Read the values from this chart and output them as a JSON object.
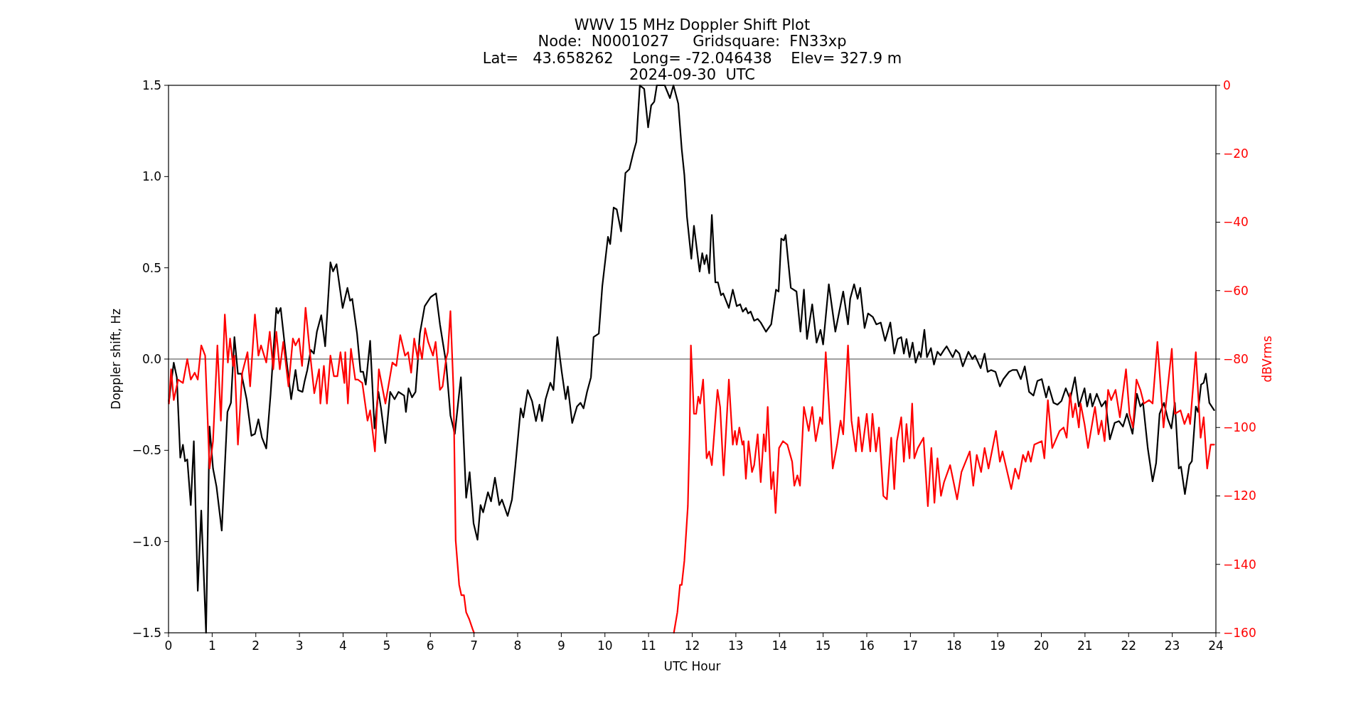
{
  "chart_data": {
    "type": "line",
    "title": "WWV 15 MHz Doppler Shift Plot",
    "subtitle": "Node:  N0001027     Gridsquare:  FN33xp\nLat=   43.658262    Long= -72.046438    Elev= 327.9 m\n2024-09-30  UTC",
    "xlabel": "UTC Hour",
    "ylabel": "Doppler shift, Hz",
    "y2label": "dBVrms",
    "xlim": [
      0,
      24
    ],
    "xticks": [
      0,
      1,
      2,
      3,
      4,
      5,
      6,
      7,
      8,
      9,
      10,
      11,
      12,
      13,
      14,
      15,
      16,
      17,
      18,
      19,
      20,
      21,
      22,
      23,
      24
    ],
    "ylim": [
      -1.5,
      1.5
    ],
    "yticks": [
      {
        "value": -1.5,
        "label": "−1.5"
      },
      {
        "value": -1,
        "label": "−1.0"
      },
      {
        "value": -0.5,
        "label": "−0.5"
      },
      {
        "value": 0,
        "label": "0.0"
      },
      {
        "value": 0.5,
        "label": "0.5"
      },
      {
        "value": 1,
        "label": "1.0"
      },
      {
        "value": 1.5,
        "label": "1.5"
      }
    ],
    "y2lim": [
      -160,
      0
    ],
    "y2ticks": [
      {
        "value": -160,
        "label": "−160"
      },
      {
        "value": -140,
        "label": "−140"
      },
      {
        "value": -120,
        "label": "−120"
      },
      {
        "value": -100,
        "label": "−100"
      },
      {
        "value": -80,
        "label": "−80"
      },
      {
        "value": -60,
        "label": "−60"
      },
      {
        "value": -40,
        "label": "−40"
      },
      {
        "value": -20,
        "label": "−20"
      },
      0
    ],
    "grid": false,
    "ref_lines": [
      {
        "axis": "y",
        "value": 0,
        "color": "#808080"
      }
    ],
    "series": [
      {
        "color": "#000000",
        "x": [
          0.01,
          0.12,
          0.19,
          0.27,
          0.33,
          0.38,
          0.43,
          0.51,
          0.58,
          0.67,
          0.75,
          0.86,
          0.94,
          1.02,
          1.1,
          1.22,
          1.35,
          1.43,
          1.51,
          1.59,
          1.67,
          1.79,
          1.9,
          1.98,
          2.06,
          2.14,
          2.24,
          2.34,
          2.47,
          2.51,
          2.57,
          2.69,
          2.81,
          2.91,
          2.97,
          3.07,
          3.12,
          3.18,
          3.26,
          3.33,
          3.4,
          3.5,
          3.59,
          3.71,
          3.77,
          3.85,
          3.99,
          4.1,
          4.16,
          4.21,
          4.32,
          4.4,
          4.46,
          4.52,
          4.62,
          4.72,
          4.81,
          4.87,
          4.97,
          5.08,
          5.18,
          5.27,
          5.4,
          5.44,
          5.5,
          5.58,
          5.66,
          5.76,
          5.87,
          6.01,
          6.07,
          6.13,
          6.22,
          6.36,
          6.46,
          6.56,
          6.7,
          6.82,
          6.9,
          6.99,
          7.08,
          7.15,
          7.21,
          7.32,
          7.39,
          7.48,
          7.58,
          7.64,
          7.77,
          7.87,
          7.95,
          8.07,
          8.13,
          8.23,
          8.33,
          8.42,
          8.5,
          8.56,
          8.64,
          8.75,
          8.82,
          8.91,
          9.01,
          9.1,
          9.15,
          9.25,
          9.36,
          9.44,
          9.51,
          9.59,
          9.68,
          9.74,
          9.86,
          9.94,
          10.07,
          10.12,
          10.2,
          10.27,
          10.37,
          10.47,
          10.56,
          10.65,
          10.72,
          10.8,
          10.9,
          10.99,
          11.06,
          11.13,
          11.19,
          11.37,
          11.49,
          11.57,
          11.68,
          11.76,
          11.82,
          11.88,
          11.98,
          12.04,
          12.17,
          12.23,
          12.28,
          12.33,
          12.39,
          12.45,
          12.53,
          12.59,
          12.66,
          12.71,
          12.84,
          12.93,
          13.02,
          13.1,
          13.16,
          13.23,
          13.28,
          13.34,
          13.42,
          13.5,
          13.57,
          13.69,
          13.81,
          13.92,
          13.98,
          14.04,
          14.1,
          14.14,
          14.26,
          14.39,
          14.48,
          14.56,
          14.63,
          14.75,
          14.85,
          14.94,
          15.0,
          15.13,
          15.28,
          15.46,
          15.57,
          15.62,
          15.71,
          15.79,
          15.85,
          15.95,
          16.03,
          16.14,
          16.22,
          16.32,
          16.42,
          16.54,
          16.63,
          16.71,
          16.79,
          16.85,
          16.91,
          16.98,
          17.05,
          17.12,
          17.2,
          17.24,
          17.32,
          17.38,
          17.47,
          17.54,
          17.62,
          17.69,
          17.77,
          17.83,
          17.97,
          18.04,
          18.12,
          18.2,
          18.33,
          18.42,
          18.48,
          18.61,
          18.7,
          18.77,
          18.85,
          18.95,
          19.05,
          19.13,
          19.26,
          19.34,
          19.44,
          19.53,
          19.62,
          19.72,
          19.82,
          19.91,
          20.01,
          20.11,
          20.17,
          20.28,
          20.37,
          20.46,
          20.56,
          20.66,
          20.77,
          20.86,
          20.99,
          21.05,
          21.12,
          21.17,
          21.27,
          21.38,
          21.47,
          21.57,
          21.68,
          21.78,
          21.87,
          21.96,
          22.09,
          22.19,
          22.27,
          22.33,
          22.44,
          22.55,
          22.63,
          22.71,
          22.81,
          22.9,
          22.98,
          23.06,
          23.15,
          23.2,
          23.29,
          23.39,
          23.45,
          23.54,
          23.59,
          23.66,
          23.72,
          23.77,
          23.85,
          23.96
        ],
        "values": [
          -0.23,
          -0.02,
          -0.1,
          -0.54,
          -0.47,
          -0.56,
          -0.55,
          -0.8,
          -0.45,
          -1.27,
          -0.83,
          -1.5,
          -0.37,
          -0.6,
          -0.7,
          -0.94,
          -0.29,
          -0.24,
          0.12,
          -0.08,
          -0.08,
          -0.22,
          -0.42,
          -0.41,
          -0.33,
          -0.43,
          -0.49,
          -0.19,
          0.28,
          0.25,
          0.28,
          0.02,
          -0.22,
          -0.06,
          -0.17,
          -0.18,
          -0.12,
          -0.06,
          0.05,
          0.03,
          0.15,
          0.24,
          0.07,
          0.53,
          0.48,
          0.52,
          0.28,
          0.39,
          0.32,
          0.33,
          0.14,
          -0.07,
          -0.07,
          -0.14,
          0.1,
          -0.38,
          -0.18,
          -0.27,
          -0.46,
          -0.18,
          -0.22,
          -0.18,
          -0.2,
          -0.29,
          -0.16,
          -0.21,
          -0.18,
          0.14,
          0.29,
          0.34,
          0.35,
          0.36,
          0.19,
          -0.02,
          -0.31,
          -0.41,
          -0.1,
          -0.76,
          -0.62,
          -0.9,
          -0.99,
          -0.8,
          -0.84,
          -0.73,
          -0.78,
          -0.65,
          -0.8,
          -0.77,
          -0.86,
          -0.77,
          -0.58,
          -0.27,
          -0.32,
          -0.17,
          -0.23,
          -0.34,
          -0.25,
          -0.34,
          -0.22,
          -0.13,
          -0.17,
          0.12,
          -0.07,
          -0.22,
          -0.15,
          -0.35,
          -0.26,
          -0.24,
          -0.27,
          -0.18,
          -0.1,
          0.12,
          0.14,
          0.4,
          0.67,
          0.63,
          0.83,
          0.82,
          0.7,
          1.02,
          1.04,
          1.13,
          1.19,
          1.5,
          1.48,
          1.27,
          1.39,
          1.41,
          1.5,
          1.5,
          1.43,
          1.5,
          1.4,
          1.15,
          1.01,
          0.78,
          0.55,
          0.73,
          0.48,
          0.58,
          0.52,
          0.57,
          0.47,
          0.79,
          0.42,
          0.42,
          0.35,
          0.36,
          0.28,
          0.38,
          0.29,
          0.3,
          0.26,
          0.28,
          0.25,
          0.26,
          0.21,
          0.22,
          0.2,
          0.15,
          0.19,
          0.38,
          0.37,
          0.66,
          0.65,
          0.68,
          0.39,
          0.37,
          0.15,
          0.38,
          0.11,
          0.3,
          0.09,
          0.16,
          0.08,
          0.41,
          0.15,
          0.37,
          0.19,
          0.33,
          0.41,
          0.33,
          0.39,
          0.17,
          0.25,
          0.23,
          0.19,
          0.2,
          0.1,
          0.2,
          0.03,
          0.11,
          0.12,
          0.03,
          0.11,
          0.01,
          0.09,
          -0.02,
          0.04,
          0.01,
          0.16,
          0.01,
          0.06,
          -0.03,
          0.04,
          0.02,
          0.05,
          0.07,
          0.01,
          0.05,
          0.03,
          -0.04,
          0.04,
          0,
          0.02,
          -0.05,
          0.03,
          -0.07,
          -0.06,
          -0.07,
          -0.15,
          -0.11,
          -0.07,
          -0.06,
          -0.06,
          -0.11,
          -0.04,
          -0.18,
          -0.2,
          -0.12,
          -0.11,
          -0.21,
          -0.15,
          -0.24,
          -0.25,
          -0.23,
          -0.16,
          -0.22,
          -0.1,
          -0.26,
          -0.16,
          -0.26,
          -0.19,
          -0.26,
          -0.19,
          -0.26,
          -0.23,
          -0.44,
          -0.35,
          -0.34,
          -0.37,
          -0.3,
          -0.41,
          -0.19,
          -0.26,
          -0.24,
          -0.49,
          -0.67,
          -0.57,
          -0.3,
          -0.24,
          -0.33,
          -0.38,
          -0.24,
          -0.6,
          -0.59,
          -0.74,
          -0.58,
          -0.56,
          -0.26,
          -0.29,
          -0.14,
          -0.13,
          -0.08,
          -0.24,
          -0.28
        ]
      },
      {
        "color": "#ff0000",
        "axis": "y2",
        "x": [
          0.01,
          0.06,
          0.12,
          0.22,
          0.33,
          0.43,
          0.51,
          0.6,
          0.67,
          0.75,
          0.84,
          0.94,
          1.02,
          1.12,
          1.2,
          1.29,
          1.36,
          1.41,
          1.48,
          1.51,
          1.59,
          1.69,
          1.81,
          1.87,
          1.98,
          2.06,
          2.12,
          2.24,
          2.32,
          2.4,
          2.47,
          2.55,
          2.63,
          2.75,
          2.85,
          2.91,
          2.99,
          3.06,
          3.14,
          3.24,
          3.34,
          3.45,
          3.48,
          3.56,
          3.63,
          3.71,
          3.79,
          3.87,
          3.94,
          4.03,
          4.05,
          4.11,
          4.18,
          4.28,
          4.34,
          4.44,
          4.56,
          4.62,
          4.73,
          4.82,
          4.97,
          5.13,
          5.22,
          5.31,
          5.42,
          5.49,
          5.56,
          5.63,
          5.71,
          5.75,
          5.81,
          5.88,
          5.95,
          6.06,
          6.12,
          6.22,
          6.28,
          6.36,
          6.4,
          6.46,
          6.53,
          6.58,
          6.66,
          6.71,
          6.77,
          6.82,
          6.89,
          6.97,
          7.0,
          9.3,
          11.58,
          11.66,
          11.72,
          11.76,
          11.82,
          11.9,
          11.94,
          11.97,
          12.04,
          12.09,
          12.14,
          12.18,
          12.25,
          12.33,
          12.39,
          12.45,
          12.58,
          12.64,
          12.72,
          12.84,
          12.93,
          12.98,
          13.02,
          13.08,
          13.15,
          13.18,
          13.23,
          13.29,
          13.37,
          13.42,
          13.5,
          13.57,
          13.64,
          13.68,
          13.73,
          13.81,
          13.86,
          13.91,
          13.99,
          14.08,
          14.18,
          14.29,
          14.34,
          14.41,
          14.47,
          14.56,
          14.67,
          14.75,
          14.83,
          14.93,
          14.98,
          15.06,
          15.14,
          15.22,
          15.32,
          15.4,
          15.46,
          15.57,
          15.65,
          15.75,
          15.81,
          15.89,
          16.0,
          16.08,
          16.13,
          16.21,
          16.28,
          16.38,
          16.46,
          16.56,
          16.63,
          16.69,
          16.79,
          16.85,
          16.91,
          16.98,
          17.04,
          17.09,
          17.17,
          17.3,
          17.4,
          17.48,
          17.55,
          17.62,
          17.7,
          17.77,
          17.91,
          18.07,
          18.17,
          18.36,
          18.44,
          18.52,
          18.62,
          18.7,
          18.79,
          18.96,
          19.05,
          19.11,
          19.31,
          19.4,
          19.48,
          19.58,
          19.64,
          19.7,
          19.76,
          19.84,
          20.01,
          20.07,
          20.15,
          20.25,
          20.42,
          20.51,
          20.58,
          20.66,
          20.72,
          20.78,
          20.86,
          20.9,
          20.99,
          21.07,
          21.23,
          21.31,
          21.38,
          21.45,
          21.53,
          21.6,
          21.7,
          21.8,
          21.94,
          22.02,
          22.1,
          22.18,
          22.27,
          22.35,
          22.47,
          22.55,
          22.66,
          22.8,
          22.99,
          23.06,
          23.19,
          23.28,
          23.37,
          23.41,
          23.54,
          23.65,
          23.72,
          23.8,
          23.88,
          23.96
        ],
        "values": [
          -93,
          -83,
          -92,
          -86,
          -87,
          -80,
          -86,
          -84,
          -86,
          -76,
          -79,
          -112,
          -104,
          -76,
          -98,
          -67,
          -81,
          -74,
          -82,
          -79,
          -105,
          -84,
          -78,
          -88,
          -67,
          -79,
          -76,
          -81,
          -72,
          -83,
          -72,
          -83,
          -75,
          -88,
          -74,
          -76,
          -74,
          -82,
          -65,
          -78,
          -90,
          -83,
          -93,
          -82,
          -93,
          -79,
          -85,
          -85,
          -78,
          -87,
          -78,
          -93,
          -77,
          -86,
          -86,
          -87,
          -98,
          -95,
          -107,
          -83,
          -93,
          -81,
          -82,
          -73,
          -79,
          -78,
          -84,
          -74,
          -80,
          -76,
          -80,
          -71,
          -75,
          -79,
          -75,
          -89,
          -88,
          -80,
          -78,
          -66,
          -89,
          -133,
          -146,
          -149,
          -149,
          -154,
          -156,
          -159,
          -160,
          null,
          -160,
          -154,
          -146,
          -146,
          -139,
          -123,
          -102,
          -76,
          -96,
          -96,
          -91,
          -93,
          -86,
          -109,
          -107,
          -111,
          -89,
          -94,
          -114,
          -86,
          -105,
          -101,
          -105,
          -100,
          -105,
          -104,
          -115,
          -104,
          -113,
          -111,
          -102,
          -116,
          -102,
          -107,
          -94,
          -118,
          -113,
          -125,
          -106,
          -104,
          -105,
          -110,
          -117,
          -114,
          -117,
          -94,
          -101,
          -94,
          -104,
          -97,
          -99,
          -78,
          -95,
          -112,
          -105,
          -98,
          -102,
          -76,
          -98,
          -107,
          -97,
          -107,
          -96,
          -107,
          -96,
          -107,
          -100,
          -120,
          -121,
          -103,
          -118,
          -104,
          -97,
          -110,
          -99,
          -109,
          -93,
          -109,
          -106,
          -103,
          -123,
          -106,
          -122,
          -109,
          -120,
          -116,
          -111,
          -121,
          -113,
          -107,
          -117,
          -108,
          -113,
          -106,
          -112,
          -101,
          -110,
          -107,
          -118,
          -112,
          -115,
          -108,
          -110,
          -107,
          -110,
          -105,
          -104,
          -109,
          -92,
          -106,
          -101,
          -100,
          -103,
          -90,
          -97,
          -93,
          -100,
          -93,
          -99,
          -106,
          -94,
          -102,
          -98,
          -104,
          -89,
          -92,
          -89,
          -97,
          -83,
          -96,
          -100,
          -86,
          -89,
          -93,
          -92,
          -93,
          -75,
          -100,
          -77,
          -96,
          -95,
          -99,
          -96,
          -99,
          -78,
          -103,
          -97,
          -112,
          -105,
          -105
        ]
      }
    ]
  }
}
